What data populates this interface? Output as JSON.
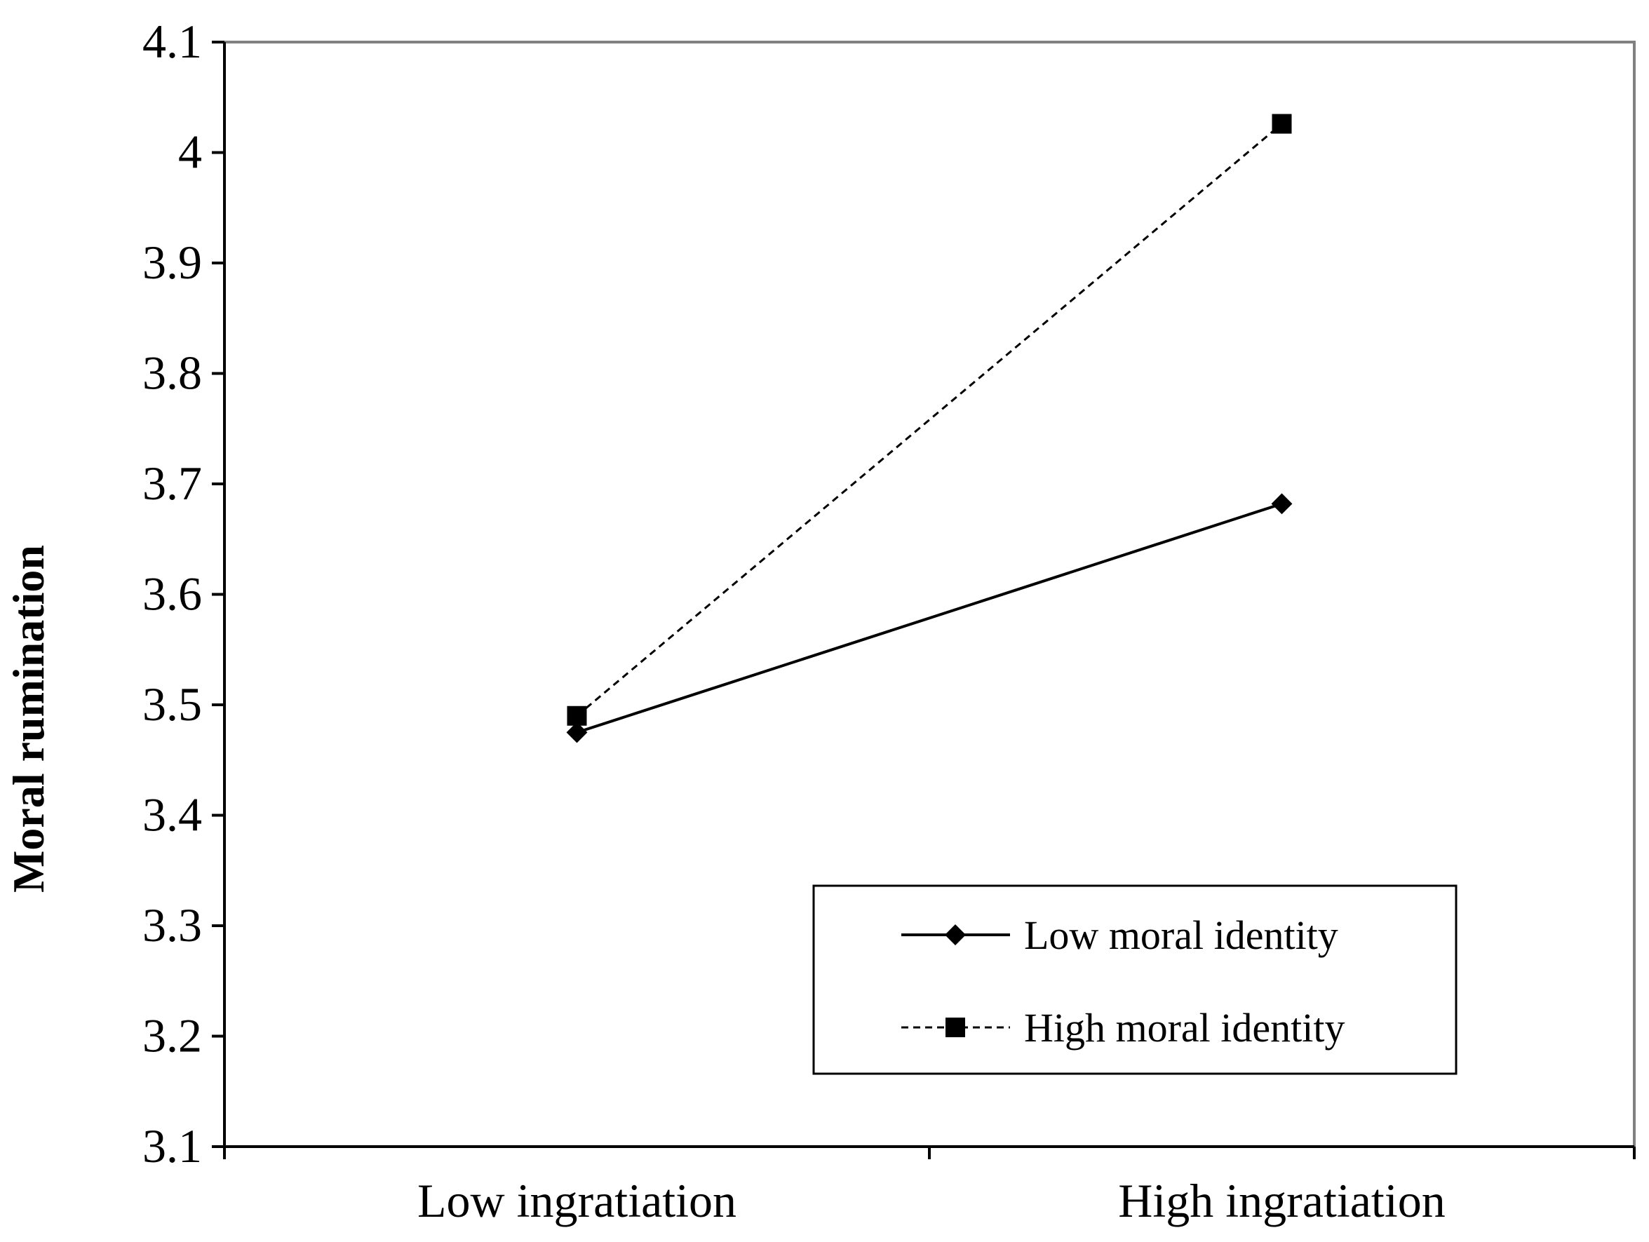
{
  "chart_data": {
    "type": "line",
    "categories": [
      "Low ingratiation",
      "High ingratiation"
    ],
    "series": [
      {
        "name": "Low moral identity",
        "values": [
          3.475,
          3.682
        ],
        "line_style": "solid",
        "marker": "diamond",
        "color": "#000000"
      },
      {
        "name": "High moral identity",
        "values": [
          3.49,
          4.026
        ],
        "line_style": "dashed",
        "marker": "square",
        "color": "#000000"
      }
    ],
    "title": "",
    "xlabel": "",
    "ylabel": "Moral rumination",
    "ylim": [
      3.1,
      4.1
    ],
    "yticks": [
      "3.1",
      "3.2",
      "3.3",
      "3.4",
      "3.5",
      "3.6",
      "3.7",
      "3.8",
      "3.9",
      "4",
      "4.1"
    ],
    "grid": false,
    "legend_position": "bottom-right"
  }
}
